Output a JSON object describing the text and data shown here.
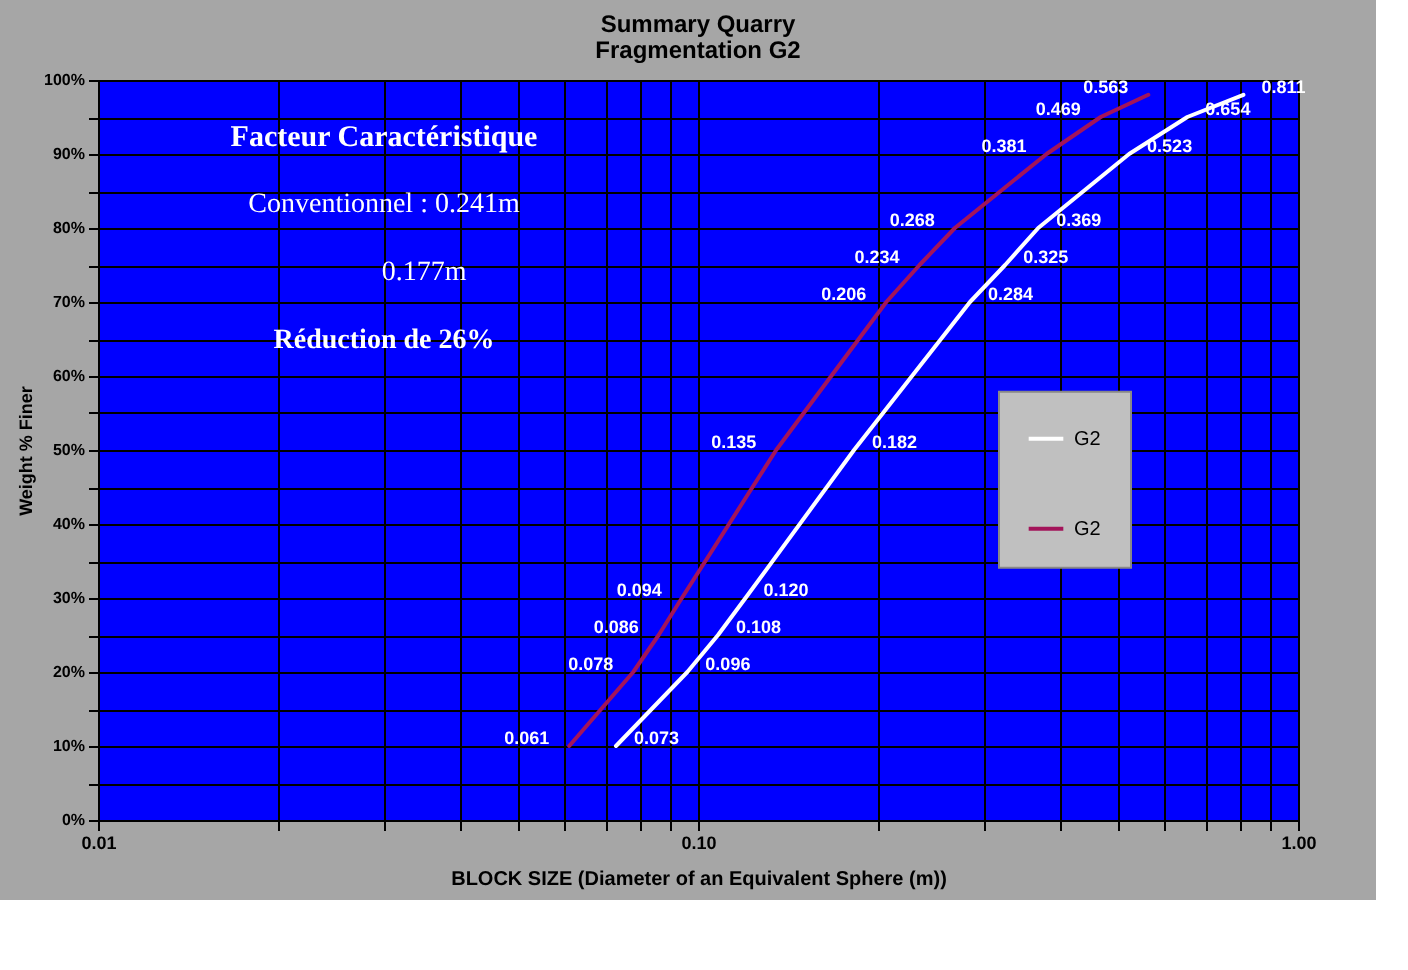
{
  "chart_data": {
    "type": "line",
    "title": "Summary Quarry",
    "subtitle": "Fragmentation G2",
    "xlabel": "BLOCK SIZE (Diameter of an Equivalent Sphere (m))",
    "ylabel": "Weight % Finer",
    "log": "x",
    "xlim": [
      0.01,
      1
    ],
    "ylim": [
      0,
      100
    ],
    "xticks": [
      {
        "value": 0.01,
        "label": "0.01"
      },
      {
        "value": 0.02,
        "label": null
      },
      {
        "value": 0.03,
        "label": null
      },
      {
        "value": 0.04,
        "label": null
      },
      {
        "value": 0.05,
        "label": null
      },
      {
        "value": 0.06,
        "label": null
      },
      {
        "value": 0.07,
        "label": null
      },
      {
        "value": 0.08,
        "label": null
      },
      {
        "value": 0.09,
        "label": null
      },
      {
        "value": 0.1,
        "label": "0.10"
      },
      {
        "value": 0.2,
        "label": null
      },
      {
        "value": 0.3,
        "label": null
      },
      {
        "value": 0.4,
        "label": null
      },
      {
        "value": 0.5,
        "label": null
      },
      {
        "value": 0.6,
        "label": null
      },
      {
        "value": 0.7,
        "label": null
      },
      {
        "value": 0.8,
        "label": null
      },
      {
        "value": 0.9,
        "label": null
      },
      {
        "value": 1,
        "label": "1.00"
      }
    ],
    "yticks": [
      {
        "value": 0,
        "label": "0%"
      },
      {
        "value": 5,
        "label": null
      },
      {
        "value": 10,
        "label": "10%"
      },
      {
        "value": 15,
        "label": null
      },
      {
        "value": 20,
        "label": "20%"
      },
      {
        "value": 25,
        "label": null
      },
      {
        "value": 30,
        "label": "30%"
      },
      {
        "value": 35,
        "label": null
      },
      {
        "value": 40,
        "label": "40%"
      },
      {
        "value": 45,
        "label": null
      },
      {
        "value": 50,
        "label": "50%"
      },
      {
        "value": 55,
        "label": null
      },
      {
        "value": 60,
        "label": "60%"
      },
      {
        "value": 65,
        "label": null
      },
      {
        "value": 70,
        "label": "70%"
      },
      {
        "value": 75,
        "label": null
      },
      {
        "value": 80,
        "label": "80%"
      },
      {
        "value": 85,
        "label": null
      },
      {
        "value": 90,
        "label": "90%"
      },
      {
        "value": 95,
        "label": null
      },
      {
        "value": 100,
        "label": "100%"
      }
    ],
    "grid": true,
    "legend": "right",
    "marker": "none",
    "line_style": "solid",
    "series": [
      {
        "name": "G2",
        "color": "#ffffff",
        "x": [
          0.073,
          0.096,
          0.108,
          0.12,
          0.182,
          0.284,
          0.325,
          0.369,
          0.523,
          0.654,
          0.811
        ],
        "values": [
          10,
          20,
          25,
          30,
          50,
          70,
          75,
          80,
          90,
          95,
          98
        ]
      },
      {
        "name": "G2",
        "color": "#a3145a",
        "x": [
          0.061,
          0.078,
          0.086,
          0.094,
          0.135,
          0.206,
          0.234,
          0.268,
          0.381,
          0.469,
          0.563
        ],
        "values": [
          10,
          20,
          25,
          30,
          50,
          70,
          75,
          80,
          90,
          95,
          98
        ]
      }
    ],
    "annotations": [
      "Facteur Caractéristique",
      "Conventionnel : 0.241m",
      "0.177m",
      "Réduction de 26%",
      {
        "text": "0.073",
        "x": 0.073,
        "y": 10
      },
      {
        "text": "0.096",
        "x": 0.096,
        "y": 20
      },
      {
        "text": "0.108",
        "x": 0.108,
        "y": 25
      },
      {
        "text": "0.120",
        "x": 0.12,
        "y": 30
      },
      {
        "text": "0.182",
        "x": 0.182,
        "y": 50
      },
      {
        "text": "0.284",
        "x": 0.284,
        "y": 70
      },
      {
        "text": "0.325",
        "x": 0.325,
        "y": 75
      },
      {
        "text": "0.369",
        "x": 0.369,
        "y": 80
      },
      {
        "text": "0.523",
        "x": 0.523,
        "y": 90
      },
      {
        "text": "0.654",
        "x": 0.654,
        "y": 95
      },
      {
        "text": "0.811",
        "x": 0.811,
        "y": 98
      },
      {
        "text": "0.061",
        "x": 0.061,
        "y": 10
      },
      {
        "text": "0.078",
        "x": 0.078,
        "y": 20
      },
      {
        "text": "0.086",
        "x": 0.086,
        "y": 25
      },
      {
        "text": "0.094",
        "x": 0.094,
        "y": 30
      },
      {
        "text": "0.135",
        "x": 0.135,
        "y": 50
      },
      {
        "text": "0.206",
        "x": 0.206,
        "y": 70
      },
      {
        "text": "0.234",
        "x": 0.234,
        "y": 75
      },
      {
        "text": "0.268",
        "x": 0.268,
        "y": 80
      },
      {
        "text": "0.381",
        "x": 0.381,
        "y": 90
      },
      {
        "text": "0.469",
        "x": 0.469,
        "y": 95
      },
      {
        "text": "0.563",
        "x": 0.563,
        "y": 98
      }
    ]
  }
}
